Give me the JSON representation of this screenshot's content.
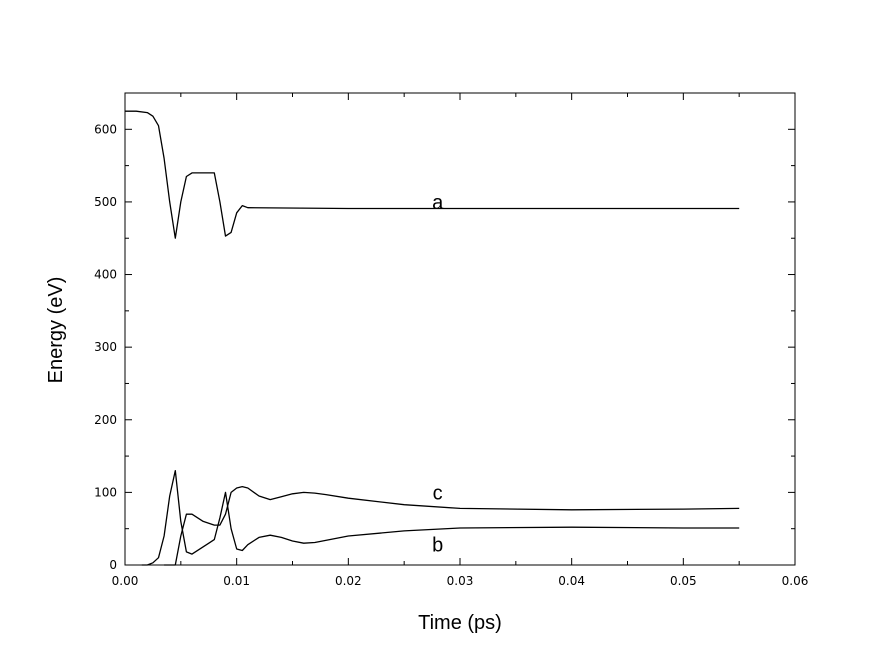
{
  "chart_data": {
    "type": "line",
    "xlabel": "Time (ps)",
    "ylabel": "Energy (eV)",
    "xlim": [
      0,
      0.06
    ],
    "ylim": [
      0,
      650
    ],
    "xticks": [
      0,
      0.01,
      0.02,
      0.03,
      0.04,
      0.05,
      0.06
    ],
    "xtick_labels": [
      "0.00",
      "0.01",
      "0.02",
      "0.03",
      "0.04",
      "0.05",
      "0.06"
    ],
    "yticks": [
      0,
      100,
      200,
      300,
      400,
      500,
      600
    ],
    "ytick_labels": [
      "0",
      "100",
      "200",
      "300",
      "400",
      "500",
      "600"
    ],
    "grid": false,
    "legend": "inline labels",
    "series": [
      {
        "name": "a",
        "label_at": [
          0.028,
          500
        ],
        "x": [
          0.0,
          0.001,
          0.002,
          0.0025,
          0.003,
          0.0035,
          0.004,
          0.0045,
          0.005,
          0.0055,
          0.006,
          0.007,
          0.008,
          0.0085,
          0.009,
          0.0095,
          0.01,
          0.0105,
          0.011,
          0.02,
          0.03,
          0.04,
          0.05,
          0.055
        ],
        "y": [
          625,
          625,
          623,
          618,
          605,
          560,
          500,
          450,
          500,
          535,
          540,
          540,
          540,
          500,
          453,
          458,
          485,
          495,
          492,
          491,
          491,
          491,
          491,
          491
        ]
      },
      {
        "name": "b",
        "label_at": [
          0.028,
          28
        ],
        "x": [
          0.0015,
          0.002,
          0.0025,
          0.003,
          0.0035,
          0.004,
          0.0045,
          0.005,
          0.0055,
          0.006,
          0.007,
          0.0075,
          0.008,
          0.0085,
          0.009,
          0.0095,
          0.01,
          0.0105,
          0.011,
          0.012,
          0.013,
          0.014,
          0.015,
          0.016,
          0.017,
          0.02,
          0.025,
          0.03,
          0.04,
          0.05,
          0.055
        ],
        "y": [
          0,
          0,
          3,
          10,
          40,
          95,
          130,
          60,
          18,
          15,
          25,
          30,
          35,
          65,
          100,
          50,
          22,
          20,
          28,
          38,
          41,
          38,
          33,
          30,
          31,
          40,
          47,
          51,
          52,
          51,
          51
        ]
      },
      {
        "name": "c",
        "label_at": [
          0.028,
          100
        ],
        "x": [
          0.0035,
          0.004,
          0.0045,
          0.005,
          0.0055,
          0.006,
          0.007,
          0.008,
          0.0085,
          0.009,
          0.0095,
          0.01,
          0.0105,
          0.011,
          0.012,
          0.013,
          0.014,
          0.015,
          0.016,
          0.017,
          0.018,
          0.02,
          0.025,
          0.03,
          0.04,
          0.05,
          0.055
        ],
        "y": [
          0,
          0,
          0,
          40,
          70,
          70,
          60,
          55,
          55,
          70,
          100,
          106,
          108,
          106,
          95,
          90,
          94,
          98,
          100,
          99,
          97,
          92,
          83,
          78,
          76,
          77,
          78
        ]
      }
    ]
  }
}
